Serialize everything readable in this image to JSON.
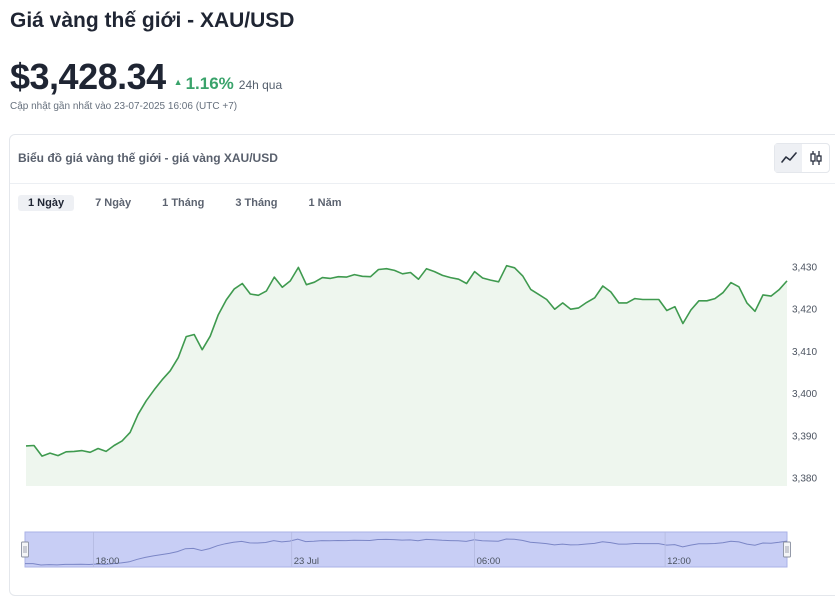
{
  "header": {
    "title": "Giá vàng thế giới - XAU/USD",
    "price": "$3,428.34",
    "change_pct": "1.16%",
    "change_period": "24h qua",
    "updated": "Cập nhật gần nhất vào 23-07-2025 16:06 (UTC +7)"
  },
  "card": {
    "title": "Biểu đồ giá vàng thế giới - giá vàng XAU/USD"
  },
  "tabs": [
    {
      "label": "1 Ngày",
      "active": true
    },
    {
      "label": "7 Ngày",
      "active": false
    },
    {
      "label": "1 Tháng",
      "active": false
    },
    {
      "label": "3 Tháng",
      "active": false
    },
    {
      "label": "1 Năm",
      "active": false
    }
  ],
  "colors": {
    "line": "#3f9a4f",
    "area": "#eef6ee",
    "up": "#3aa36b",
    "navigator_mask": "#c8cef5",
    "navigator_line": "#7b86c6"
  },
  "icons": {
    "line_chart": "line-chart-icon",
    "candlestick": "candlestick-icon"
  },
  "chart_data": {
    "type": "area",
    "ylim": [
      3378,
      3432
    ],
    "yticks": [
      "3,430",
      "3,420",
      "3,410",
      "3,400",
      "3,390",
      "3,380"
    ],
    "ytick_values": [
      3430,
      3420,
      3410,
      3400,
      3390,
      3380
    ],
    "series": [
      {
        "values": [
          3387.6,
          3387.7,
          3385.2,
          3385.9,
          3385.3,
          3386.2,
          3386.3,
          3386.5,
          3386.1,
          3387.0,
          3386.3,
          3387.7,
          3388.8,
          3390.8,
          3395.1,
          3398.3,
          3400.9,
          3403.3,
          3405.4,
          3408.5,
          3413.5,
          3414.0,
          3410.4,
          3413.6,
          3418.7,
          3422.2,
          3424.8,
          3426.1,
          3423.6,
          3423.3,
          3424.3,
          3427.6,
          3425.2,
          3426.7,
          3429.9,
          3425.8,
          3426.4,
          3427.5,
          3427.3,
          3427.7,
          3427.6,
          3428.2,
          3427.8,
          3427.7,
          3429.4,
          3429.6,
          3429.2,
          3428.4,
          3428.7,
          3427.1,
          3429.6,
          3428.9,
          3428.0,
          3427.5,
          3427.1,
          3426.1,
          3428.9,
          3427.4,
          3426.9,
          3426.5,
          3430.3,
          3429.8,
          3427.9,
          3424.7,
          3423.5,
          3422.3,
          3420.0,
          3421.5,
          3420.0,
          3420.3,
          3421.6,
          3422.7,
          3425.5,
          3424.1,
          3421.5,
          3421.5,
          3422.5,
          3422.3,
          3422.3,
          3422.3,
          3419.7,
          3420.6,
          3416.6,
          3419.8,
          3422.0,
          3422.0,
          3422.5,
          3423.9,
          3426.3,
          3425.3,
          3421.5,
          3419.5,
          3423.4,
          3423.1,
          3424.6,
          3426.7
        ]
      }
    ],
    "navigator": {
      "labels": [
        "18:00",
        "23 Jul",
        "06:00",
        "12:00"
      ],
      "label_positions": [
        0.09,
        0.35,
        0.59,
        0.84
      ]
    }
  }
}
